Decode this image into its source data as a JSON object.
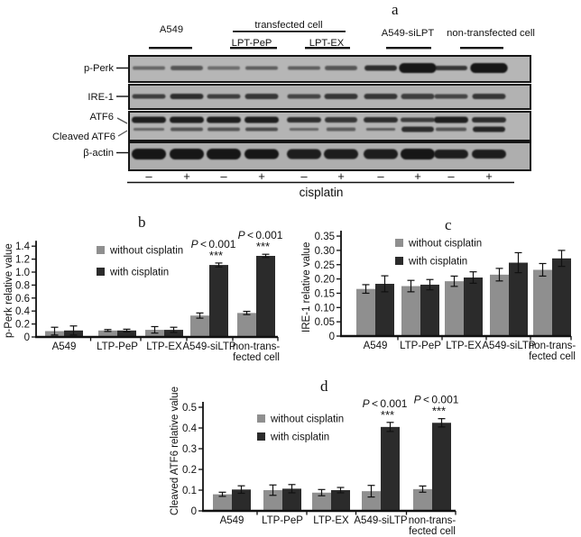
{
  "panel_letters": {
    "a": "a",
    "b": "b",
    "c": "c",
    "d": "d"
  },
  "colors": {
    "bar_without": "#8f8f8f",
    "bar_with": "#2b2b2b",
    "band": "#141414",
    "axis": "#111111",
    "blot_box_fills": [
      "#b6b6b6",
      "#b2b2b2",
      "#b4b4b4",
      "#aeaeae"
    ]
  },
  "blot": {
    "header": {
      "groups": [
        {
          "label": "A549"
        },
        {
          "label": "transfected cell",
          "sub": [
            "LPT-PeP",
            "LPT-EX"
          ]
        },
        {
          "label": "A549-siLPT"
        },
        {
          "label": "non-transfected cell"
        }
      ]
    },
    "row_labels": [
      "p-Perk",
      "IRE-1",
      "ATF6",
      "Cleaved ATF6",
      "β-actin"
    ],
    "lane_signs": [
      "–",
      "+",
      "–",
      "+",
      "–",
      "+",
      "–",
      "+",
      "–",
      "+"
    ],
    "treatment_label": "cisplatin",
    "bands": {
      "p_perk": {
        "heights": [
          4,
          5,
          4,
          4,
          4,
          5,
          6,
          11,
          5,
          11
        ],
        "opacities": [
          0.5,
          0.6,
          0.45,
          0.55,
          0.55,
          0.6,
          0.85,
          1,
          0.8,
          1
        ],
        "widths": [
          1,
          1,
          1,
          1,
          1,
          1,
          1,
          1.15,
          1,
          1.15
        ]
      },
      "ire1": {
        "heights": [
          5,
          6,
          5,
          6,
          5,
          6,
          6,
          6,
          5,
          6
        ],
        "opacities": [
          0.75,
          0.85,
          0.75,
          0.8,
          0.7,
          0.8,
          0.8,
          0.75,
          0.7,
          0.8
        ],
        "widths": [
          1,
          1,
          1,
          1,
          1,
          1,
          1,
          1,
          1,
          1
        ]
      },
      "atf6": {
        "heights": [
          7,
          7,
          7,
          7,
          6,
          6,
          6,
          5,
          7,
          6
        ],
        "opacities": [
          0.95,
          0.95,
          0.95,
          0.95,
          0.85,
          0.8,
          0.85,
          0.75,
          0.95,
          0.85
        ],
        "widths": [
          1,
          1,
          1,
          1,
          1,
          0.95,
          1,
          1,
          1,
          1
        ]
      },
      "cleaved_atf6": {
        "heights": [
          3,
          4,
          4,
          4,
          3,
          4,
          3,
          6,
          4,
          6
        ],
        "opacities": [
          0.5,
          0.6,
          0.6,
          0.65,
          0.5,
          0.55,
          0.55,
          0.85,
          0.6,
          0.9
        ],
        "widths": [
          0.95,
          1,
          1,
          1,
          0.9,
          0.9,
          0.9,
          1,
          0.95,
          1
        ]
      },
      "b_actin": {
        "heights": [
          12,
          12,
          12,
          11,
          11,
          11,
          11,
          12,
          10,
          10
        ],
        "opacities": [
          1,
          1,
          1,
          1,
          0.95,
          0.95,
          0.95,
          1,
          0.95,
          0.95
        ],
        "widths": [
          1,
          1,
          1,
          1,
          1,
          1,
          1,
          1,
          1,
          1
        ]
      }
    }
  },
  "chart_data": [
    {
      "id": "chart-b",
      "type": "bar",
      "panel": "b",
      "ylabel": "p-Perk relative value",
      "ylim": [
        0,
        1.4
      ],
      "yticks": [
        "0",
        "0.2",
        "0.4",
        "0.6",
        "0.8",
        "1.0",
        "1.2",
        "1.4"
      ],
      "categories": [
        "A549",
        "LTP-PeP",
        "LTP-EX",
        "A549-siLTP",
        [
          "non-trans-",
          "fected cell"
        ]
      ],
      "series": [
        {
          "name": "without cisplatin",
          "values": [
            0.09,
            0.1,
            0.11,
            0.33,
            0.37
          ],
          "errors": [
            0.06,
            0.015,
            0.05,
            0.04,
            0.025
          ]
        },
        {
          "name": "with cisplatin",
          "values": [
            0.1,
            0.1,
            0.11,
            1.11,
            1.25
          ],
          "errors": [
            0.07,
            0.02,
            0.04,
            0.03,
            0.025
          ]
        }
      ],
      "legend_position": "top-left-inside",
      "grid": false,
      "annotations": [
        {
          "group": 3,
          "p": "P < 0.001",
          "stars": "***"
        },
        {
          "group": 4,
          "p": "P < 0.001",
          "stars": "***"
        }
      ]
    },
    {
      "id": "chart-c",
      "type": "bar",
      "panel": "c",
      "ylabel": "IRE-1 relative value",
      "ylim": [
        0,
        0.35
      ],
      "yticks": [
        "0",
        "0.05",
        "0.10",
        "0.15",
        "0.20",
        "0.25",
        "0.30",
        "0.35"
      ],
      "categories": [
        "A549",
        "LTP-PeP",
        "LTP-EX",
        "A549-siLTP",
        [
          "non-trans-",
          "fected cell"
        ]
      ],
      "series": [
        {
          "name": "without cisplatin",
          "values": [
            0.165,
            0.175,
            0.192,
            0.215,
            0.232
          ],
          "errors": [
            0.015,
            0.02,
            0.018,
            0.022,
            0.022
          ]
        },
        {
          "name": "with cisplatin",
          "values": [
            0.183,
            0.18,
            0.205,
            0.257,
            0.272
          ],
          "errors": [
            0.028,
            0.018,
            0.02,
            0.035,
            0.028
          ]
        }
      ],
      "legend_position": "top-left-inside",
      "grid": false,
      "annotations": []
    },
    {
      "id": "chart-d",
      "type": "bar",
      "panel": "d",
      "ylabel": "Cleaved ATF6 relative value",
      "ylim": [
        0,
        0.5
      ],
      "yticks": [
        "0",
        "0.1",
        "0.2",
        "0.3",
        "0.4",
        "0.5"
      ],
      "categories": [
        "A549",
        "LTP-PeP",
        "LTP-EX",
        "A549-siLTP",
        [
          "non-trans-",
          "fected cell"
        ]
      ],
      "series": [
        {
          "name": "without cisplatin",
          "values": [
            0.08,
            0.1,
            0.088,
            0.095,
            0.105
          ],
          "errors": [
            0.01,
            0.025,
            0.015,
            0.028,
            0.015
          ]
        },
        {
          "name": "with cisplatin",
          "values": [
            0.103,
            0.107,
            0.1,
            0.405,
            0.425
          ],
          "errors": [
            0.018,
            0.02,
            0.013,
            0.022,
            0.02
          ]
        }
      ],
      "legend_position": "top-left-inside",
      "grid": false,
      "annotations": [
        {
          "group": 3,
          "p": "P < 0.001",
          "stars": "***"
        },
        {
          "group": 4,
          "p": "P < 0.001",
          "stars": "***"
        }
      ]
    }
  ]
}
